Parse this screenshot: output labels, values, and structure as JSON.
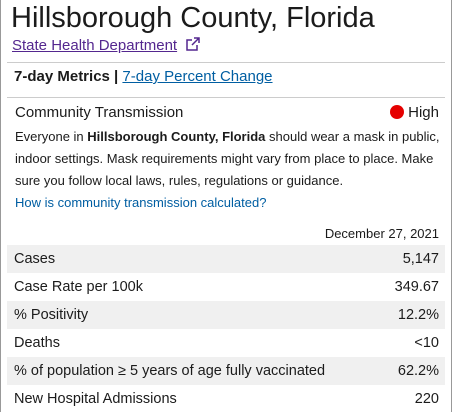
{
  "header": {
    "title": "Hillsborough County, Florida",
    "link": "State Health Department"
  },
  "tabs": {
    "active": "7-day Metrics",
    "separator": "|",
    "other": "7-day Percent Change"
  },
  "transmission": {
    "label": "Community Transmission",
    "level": "High",
    "message": [
      "Everyone in ",
      "Hillsborough County, Florida",
      " should wear a mask in public, indoor settings. Mask requirements might vary from place to place. Make sure you follow local laws, rules, regulations or guidance."
    ],
    "link": "How is community transmission calculated?"
  },
  "table": {
    "date": "December 27, 2021",
    "rows": [
      [
        "Cases",
        "5,147"
      ],
      [
        "Case Rate per 100k",
        "349.67"
      ],
      [
        "% Positivity",
        "12.2%"
      ],
      [
        "Deaths",
        "<10"
      ],
      [
        "% of population ≥ 5 years of age fully vaccinated",
        "62.2%"
      ],
      [
        "New Hospital Admissions",
        "220"
      ]
    ]
  }
}
